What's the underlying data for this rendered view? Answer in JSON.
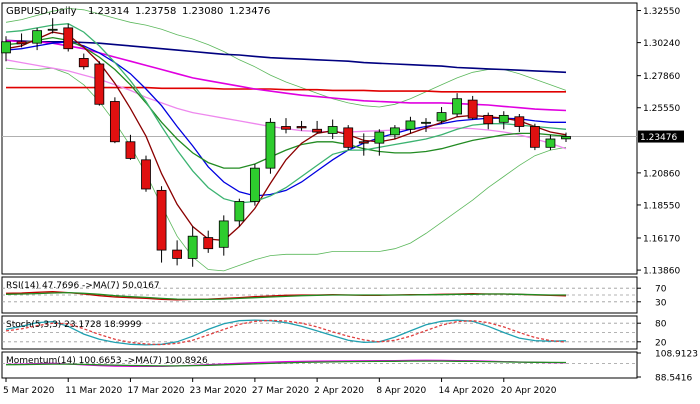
{
  "chart_data": [
    {
      "type": "candlestick",
      "title": "GBPUSD,Daily",
      "header_ohlc": [
        "1.23314",
        "1.23758",
        "1.23080",
        "1.23476"
      ],
      "last_price": "1.23476",
      "ylim": [
        1.1365,
        1.3302
      ],
      "y_ticks": [
        "1.32550",
        "1.30240",
        "1.27860",
        "1.25550",
        "1.23476",
        "1.20860",
        "1.18550",
        "1.16170",
        "1.13860"
      ],
      "x_tick_labels": [
        "5 Mar 2020",
        "11 Mar 2020",
        "17 Mar 2020",
        "23 Mar 2020",
        "27 Mar 2020",
        "2 Apr 2020",
        "8 Apr 2020",
        "14 Apr 2020",
        "20 Apr 2020"
      ],
      "x_tick_index": [
        0,
        4,
        8,
        12,
        16,
        20,
        24,
        28,
        32
      ],
      "candles": [
        {
          "o": 1.295,
          "h": 1.307,
          "l": 1.289,
          "c": 1.303
        },
        {
          "o": 1.303,
          "h": 1.309,
          "l": 1.299,
          "c": 1.3015
        },
        {
          "o": 1.302,
          "h": 1.313,
          "l": 1.297,
          "c": 1.311
        },
        {
          "o": 1.3115,
          "h": 1.32,
          "l": 1.309,
          "c": 1.312
        },
        {
          "o": 1.313,
          "h": 1.316,
          "l": 1.296,
          "c": 1.298
        },
        {
          "o": 1.291,
          "h": 1.2945,
          "l": 1.283,
          "c": 1.285
        },
        {
          "o": 1.287,
          "h": 1.289,
          "l": 1.257,
          "c": 1.258
        },
        {
          "o": 1.26,
          "h": 1.263,
          "l": 1.23,
          "c": 1.231
        },
        {
          "o": 1.231,
          "h": 1.236,
          "l": 1.218,
          "c": 1.219
        },
        {
          "o": 1.218,
          "h": 1.221,
          "l": 1.195,
          "c": 1.197
        },
        {
          "o": 1.196,
          "h": 1.199,
          "l": 1.144,
          "c": 1.153
        },
        {
          "o": 1.153,
          "h": 1.16,
          "l": 1.142,
          "c": 1.147
        },
        {
          "o": 1.147,
          "h": 1.17,
          "l": 1.141,
          "c": 1.163
        },
        {
          "o": 1.162,
          "h": 1.167,
          "l": 1.151,
          "c": 1.154
        },
        {
          "o": 1.155,
          "h": 1.178,
          "l": 1.149,
          "c": 1.174
        },
        {
          "o": 1.174,
          "h": 1.19,
          "l": 1.17,
          "c": 1.188
        },
        {
          "o": 1.188,
          "h": 1.215,
          "l": 1.185,
          "c": 1.212
        },
        {
          "o": 1.212,
          "h": 1.248,
          "l": 1.208,
          "c": 1.245
        },
        {
          "o": 1.242,
          "h": 1.248,
          "l": 1.237,
          "c": 1.24
        },
        {
          "o": 1.242,
          "h": 1.246,
          "l": 1.239,
          "c": 1.241
        },
        {
          "o": 1.24,
          "h": 1.246,
          "l": 1.237,
          "c": 1.238
        },
        {
          "o": 1.237,
          "h": 1.247,
          "l": 1.233,
          "c": 1.242
        },
        {
          "o": 1.241,
          "h": 1.243,
          "l": 1.225,
          "c": 1.227
        },
        {
          "o": 1.231,
          "h": 1.237,
          "l": 1.221,
          "c": 1.23
        },
        {
          "o": 1.23,
          "h": 1.24,
          "l": 1.221,
          "c": 1.238
        },
        {
          "o": 1.236,
          "h": 1.243,
          "l": 1.233,
          "c": 1.241
        },
        {
          "o": 1.24,
          "h": 1.249,
          "l": 1.237,
          "c": 1.246
        },
        {
          "o": 1.245,
          "h": 1.248,
          "l": 1.238,
          "c": 1.245
        },
        {
          "o": 1.246,
          "h": 1.256,
          "l": 1.244,
          "c": 1.252
        },
        {
          "o": 1.251,
          "h": 1.266,
          "l": 1.249,
          "c": 1.262
        },
        {
          "o": 1.261,
          "h": 1.264,
          "l": 1.247,
          "c": 1.248
        },
        {
          "o": 1.25,
          "h": 1.252,
          "l": 1.24,
          "c": 1.244
        },
        {
          "o": 1.245,
          "h": 1.253,
          "l": 1.24,
          "c": 1.25
        },
        {
          "o": 1.249,
          "h": 1.251,
          "l": 1.238,
          "c": 1.242
        },
        {
          "o": 1.242,
          "h": 1.244,
          "l": 1.225,
          "c": 1.227
        },
        {
          "o": 1.227,
          "h": 1.236,
          "l": 1.225,
          "c": 1.233
        },
        {
          "o": 1.2331,
          "h": 1.2376,
          "l": 1.2308,
          "c": 1.2348
        }
      ],
      "indicator_lines": [
        {
          "color": "#000080",
          "values": [
            1.304,
            1.3035,
            1.303,
            1.303,
            1.303,
            1.3025,
            1.302,
            1.301,
            1.3,
            1.299,
            1.298,
            1.297,
            1.296,
            1.295,
            1.294,
            1.2935,
            1.2925,
            1.2915,
            1.291,
            1.2905,
            1.29,
            1.2895,
            1.289,
            1.288,
            1.2875,
            1.287,
            1.2865,
            1.286,
            1.2855,
            1.2845,
            1.284,
            1.2835,
            1.283,
            1.2825,
            1.282,
            1.2815,
            1.281
          ]
        },
        {
          "color": "#e00000",
          "values": [
            1.27,
            1.27,
            1.27,
            1.27,
            1.27,
            1.27,
            1.27,
            1.27,
            1.27,
            1.27,
            1.2695,
            1.2695,
            1.2695,
            1.2695,
            1.269,
            1.269,
            1.269,
            1.269,
            1.2685,
            1.2685,
            1.2685,
            1.268,
            1.268,
            1.268,
            1.2675,
            1.2675,
            1.2675,
            1.2675,
            1.267,
            1.267,
            1.267,
            1.267,
            1.267,
            1.267,
            1.267,
            1.267,
            1.267
          ]
        },
        {
          "color": "#e000e0",
          "values": [
            1.304,
            1.303,
            1.303,
            1.302,
            1.3,
            1.298,
            1.295,
            1.292,
            1.289,
            1.286,
            1.283,
            1.28,
            1.277,
            1.275,
            1.273,
            1.271,
            1.269,
            1.2675,
            1.266,
            1.2645,
            1.2635,
            1.2625,
            1.2615,
            1.2605,
            1.26,
            1.2595,
            1.259,
            1.259,
            1.259,
            1.2585,
            1.258,
            1.2575,
            1.2565,
            1.2555,
            1.2545,
            1.254,
            1.2535
          ]
        },
        {
          "color": "#ee88ee",
          "values": [
            1.29,
            1.288,
            1.286,
            1.284,
            1.282,
            1.279,
            1.276,
            1.272,
            1.268,
            1.263,
            1.259,
            1.255,
            1.252,
            1.25,
            1.248,
            1.246,
            1.244,
            1.242,
            1.2405,
            1.239,
            1.2385,
            1.238,
            1.238,
            1.2385,
            1.239,
            1.2395,
            1.24,
            1.2405,
            1.241,
            1.241,
            1.2405,
            1.2395,
            1.238,
            1.236,
            1.233,
            1.23,
            1.226
          ]
        },
        {
          "color": "#0000e0",
          "values": [
            1.297,
            1.298,
            1.3,
            1.302,
            1.303,
            1.3,
            1.295,
            1.288,
            1.28,
            1.269,
            1.257,
            1.242,
            1.228,
            1.213,
            1.202,
            1.195,
            1.192,
            1.193,
            1.196,
            1.202,
            1.21,
            1.218,
            1.225,
            1.23,
            1.234,
            1.237,
            1.24,
            1.242,
            1.244,
            1.246,
            1.247,
            1.248,
            1.248,
            1.2475,
            1.246,
            1.245,
            1.245
          ]
        },
        {
          "color": "#228b22",
          "values": [
            1.301,
            1.302,
            1.304,
            1.306,
            1.304,
            1.299,
            1.292,
            1.283,
            1.272,
            1.259,
            1.245,
            1.233,
            1.223,
            1.216,
            1.212,
            1.212,
            1.215,
            1.22,
            1.225,
            1.229,
            1.231,
            1.231,
            1.229,
            1.226,
            1.224,
            1.223,
            1.223,
            1.224,
            1.226,
            1.229,
            1.232,
            1.234,
            1.236,
            1.237,
            1.237,
            1.236,
            1.235
          ]
        },
        {
          "color": "#8b0000",
          "values": [
            1.298,
            1.3,
            1.305,
            1.31,
            1.308,
            1.299,
            1.288,
            1.273,
            1.255,
            1.235,
            1.208,
            1.186,
            1.17,
            1.161,
            1.16,
            1.17,
            1.183,
            1.201,
            1.218,
            1.23,
            1.237,
            1.239,
            1.236,
            1.232,
            1.231,
            1.233,
            1.237,
            1.241,
            1.245,
            1.249,
            1.25,
            1.249,
            1.248,
            1.246,
            1.242,
            1.238,
            1.236
          ]
        },
        {
          "color": "#3cb371",
          "values": [
            1.31,
            1.311,
            1.313,
            1.315,
            1.316,
            1.31,
            1.3,
            1.288,
            1.275,
            1.26,
            1.242,
            1.225,
            1.21,
            1.198,
            1.19,
            1.187,
            1.188,
            1.192,
            1.198,
            1.206,
            1.214,
            1.222,
            1.225,
            1.225,
            1.227,
            1.229,
            1.231,
            1.233,
            1.236,
            1.24,
            1.243,
            1.244,
            1.244,
            1.243,
            1.242,
            1.241,
            1.24
          ]
        }
      ],
      "bollinger": {
        "color": "#5cb85c",
        "upper": [
          1.317,
          1.319,
          1.322,
          1.325,
          1.327,
          1.326,
          1.323,
          1.32,
          1.317,
          1.315,
          1.312,
          1.308,
          1.305,
          1.301,
          1.296,
          1.29,
          1.285,
          1.279,
          1.274,
          1.27,
          1.266,
          1.262,
          1.259,
          1.257,
          1.256,
          1.258,
          1.262,
          1.267,
          1.272,
          1.277,
          1.281,
          1.283,
          1.283,
          1.28,
          1.276,
          1.272,
          1.268
        ],
        "lower": [
          1.284,
          1.283,
          1.283,
          1.284,
          1.28,
          1.272,
          1.26,
          1.245,
          1.228,
          1.208,
          1.185,
          1.163,
          1.148,
          1.139,
          1.138,
          1.142,
          1.146,
          1.149,
          1.15,
          1.15,
          1.15,
          1.152,
          1.152,
          1.152,
          1.152,
          1.154,
          1.158,
          1.165,
          1.173,
          1.181,
          1.189,
          1.198,
          1.206,
          1.214,
          1.221,
          1.225,
          1.227
        ]
      }
    },
    {
      "type": "line",
      "legend": "RSI(14) 47.7696  ->MA(7) 50.0167",
      "y_ticks": [
        "70",
        "30"
      ],
      "levels": [
        70,
        50,
        30
      ],
      "ylim": [
        0,
        100
      ],
      "series": [
        {
          "color": "#c00000",
          "values": [
            55,
            56,
            58,
            60,
            57,
            53,
            48,
            44,
            42,
            40,
            37,
            36,
            37,
            38,
            40,
            42,
            45,
            47,
            49,
            50,
            50,
            51,
            50,
            49,
            49,
            50,
            51,
            51,
            52,
            53,
            54,
            53,
            53,
            52,
            50,
            49,
            47.77
          ]
        },
        {
          "color": "#228b22",
          "values": [
            52,
            53,
            54,
            56,
            57,
            55,
            52,
            48,
            45,
            43,
            40,
            38,
            37,
            37,
            38,
            40,
            42,
            44,
            46,
            48,
            49,
            50,
            50,
            50,
            50,
            50,
            50,
            51,
            51,
            52,
            52,
            53,
            53,
            52,
            51,
            50,
            50.02
          ]
        }
      ]
    },
    {
      "type": "line",
      "legend": "Stoch(5,3,3) 23.1728 18.9999",
      "y_ticks": [
        "80",
        "20"
      ],
      "levels": [
        80,
        50,
        20
      ],
      "ylim": [
        0,
        100
      ],
      "series": [
        {
          "color": "#20a0b0",
          "values": [
            60,
            70,
            82,
            85,
            70,
            45,
            28,
            18,
            12,
            10,
            12,
            20,
            38,
            60,
            78,
            88,
            90,
            88,
            82,
            70,
            55,
            40,
            25,
            18,
            20,
            35,
            55,
            75,
            86,
            90,
            86,
            70,
            50,
            32,
            24,
            22,
            23.17
          ]
        },
        {
          "color": "#e04040",
          "values": [
            55,
            62,
            72,
            80,
            78,
            62,
            44,
            28,
            18,
            13,
            11,
            15,
            25,
            42,
            60,
            76,
            86,
            89,
            87,
            80,
            68,
            52,
            38,
            26,
            20,
            25,
            38,
            56,
            74,
            85,
            88,
            82,
            68,
            50,
            34,
            24,
            19.0
          ]
        }
      ]
    },
    {
      "type": "line",
      "legend": "Momentum(14) 100.6653  ->MA(7) 100.8926",
      "y_ticks": [
        "108.9123",
        "88.5416"
      ],
      "levels": [
        100
      ],
      "ylim": [
        88.5416,
        108.9123
      ],
      "series": [
        {
          "color": "#e000e0",
          "values": [
            99.2,
            99.4,
            99.8,
            100.2,
            99.6,
            98.8,
            98.2,
            97.8,
            97.6,
            97.5,
            97.6,
            97.9,
            98.4,
            99.0,
            99.6,
            100.2,
            100.8,
            101.2,
            101.5,
            101.8,
            102.0,
            102.1,
            102.2,
            102.3,
            102.4,
            102.5,
            102.6,
            102.7,
            102.6,
            102.5,
            102.3,
            102.0,
            101.6,
            101.3,
            101.0,
            100.8,
            100.67
          ]
        },
        {
          "color": "#228b22",
          "values": [
            99.0,
            99.1,
            99.3,
            99.5,
            99.5,
            99.2,
            98.9,
            98.6,
            98.3,
            98.1,
            98.0,
            98.0,
            98.2,
            98.5,
            98.9,
            99.3,
            99.7,
            100.1,
            100.5,
            100.9,
            101.2,
            101.4,
            101.6,
            101.7,
            101.8,
            101.9,
            102.0,
            102.0,
            102.0,
            101.9,
            101.8,
            101.6,
            101.4,
            101.2,
            101.0,
            100.95,
            100.89
          ]
        }
      ]
    }
  ]
}
